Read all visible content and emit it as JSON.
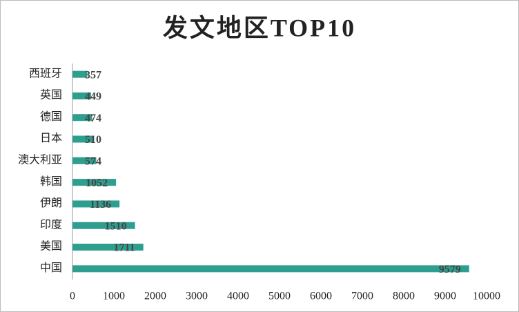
{
  "chart_data": {
    "type": "hbar",
    "title": "发文地区TOP10",
    "categories": [
      "西班牙",
      "英国",
      "德国",
      "日本",
      "澳大利亚",
      "韩国",
      "伊朗",
      "印度",
      "美国",
      "中国"
    ],
    "values": [
      357,
      449,
      474,
      510,
      574,
      1052,
      1136,
      1510,
      1711,
      9579
    ],
    "color": "#2e9e8f",
    "xlim": [
      0,
      10000
    ],
    "xticks": [
      0,
      1000,
      2000,
      3000,
      4000,
      5000,
      6000,
      7000,
      8000,
      9000,
      10000
    ],
    "grid": false
  }
}
